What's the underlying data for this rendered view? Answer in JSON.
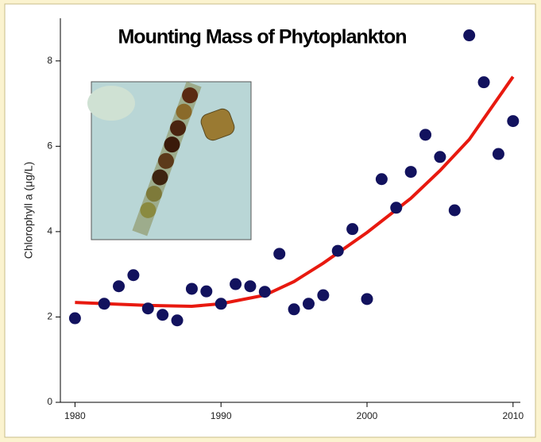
{
  "chart_data": {
    "type": "scatter",
    "title": "Mounting Mass of Phytoplankton",
    "y_label": "Chlorophyll a (μg/L)",
    "x": [
      1980,
      1982,
      1983,
      1984,
      1985,
      1986,
      1987,
      1988,
      1989,
      1990,
      1991,
      1992,
      1993,
      1994,
      1995,
      1996,
      1997,
      1998,
      1999,
      2000,
      2001,
      2002,
      2003,
      2004,
      2005,
      2006,
      2007,
      2008,
      2009,
      2010
    ],
    "values": [
      1.97,
      2.31,
      2.72,
      2.98,
      2.2,
      2.05,
      1.92,
      2.66,
      2.6,
      2.31,
      2.77,
      2.72,
      2.59,
      3.48,
      2.18,
      2.31,
      2.51,
      3.55,
      4.06,
      2.42,
      5.23,
      4.56,
      5.4,
      6.27,
      5.75,
      4.5,
      8.6,
      7.5,
      5.82,
      6.59
    ],
    "color": "#12125e",
    "fit": {
      "x": [
        1980,
        1985,
        1988,
        1990,
        1993,
        1995,
        1997,
        2000,
        2003,
        2005,
        2007,
        2010
      ],
      "values": [
        2.34,
        2.27,
        2.25,
        2.31,
        2.51,
        2.83,
        3.26,
        3.98,
        4.78,
        5.43,
        6.16,
        7.63
      ],
      "color": "#e8190f"
    },
    "xlim": [
      1979,
      2010.5
    ],
    "ylim": [
      0,
      9
    ],
    "xticks": [
      1980,
      1990,
      2000,
      2010
    ],
    "yticks": [
      0,
      2,
      4,
      6,
      8
    ]
  }
}
